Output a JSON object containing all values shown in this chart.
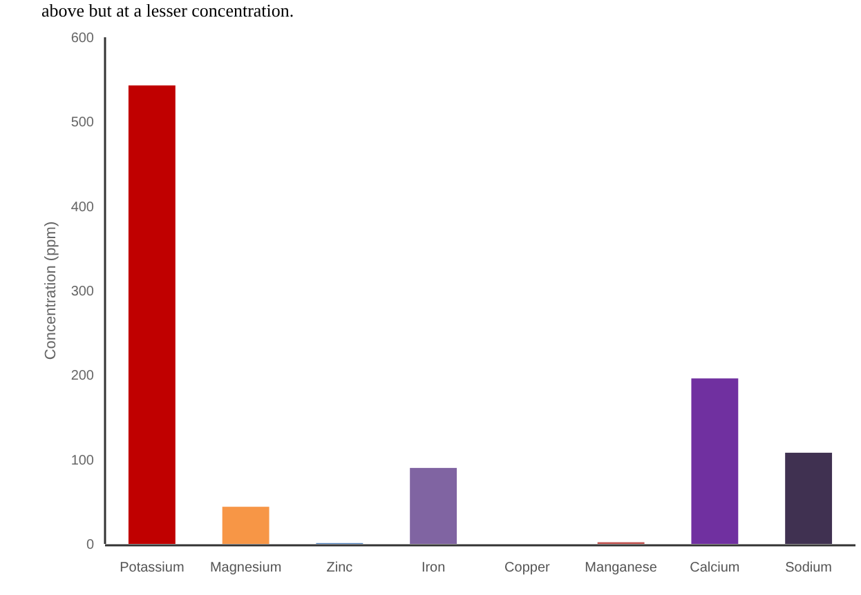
{
  "chart_data": {
    "type": "bar",
    "ylabel": "Concentration (ppm)",
    "categories": [
      "Potassium",
      "Magnesium",
      "Zinc",
      "Iron",
      "Copper",
      "Manganese",
      "Calcium",
      "Sodium"
    ],
    "values": [
      543,
      44,
      1,
      90,
      0,
      2,
      196,
      108
    ],
    "colors": [
      "#c00000",
      "#f79646",
      "#4f81bd",
      "#8064a2",
      "#4bacc6",
      "#c0504d",
      "#7030a0",
      "#403151"
    ],
    "ylim": [
      0,
      600
    ],
    "yticks": [
      0,
      100,
      200,
      300,
      400,
      500,
      600
    ],
    "grid": false,
    "annotations": [
      "above but at a lesser concentration."
    ]
  }
}
